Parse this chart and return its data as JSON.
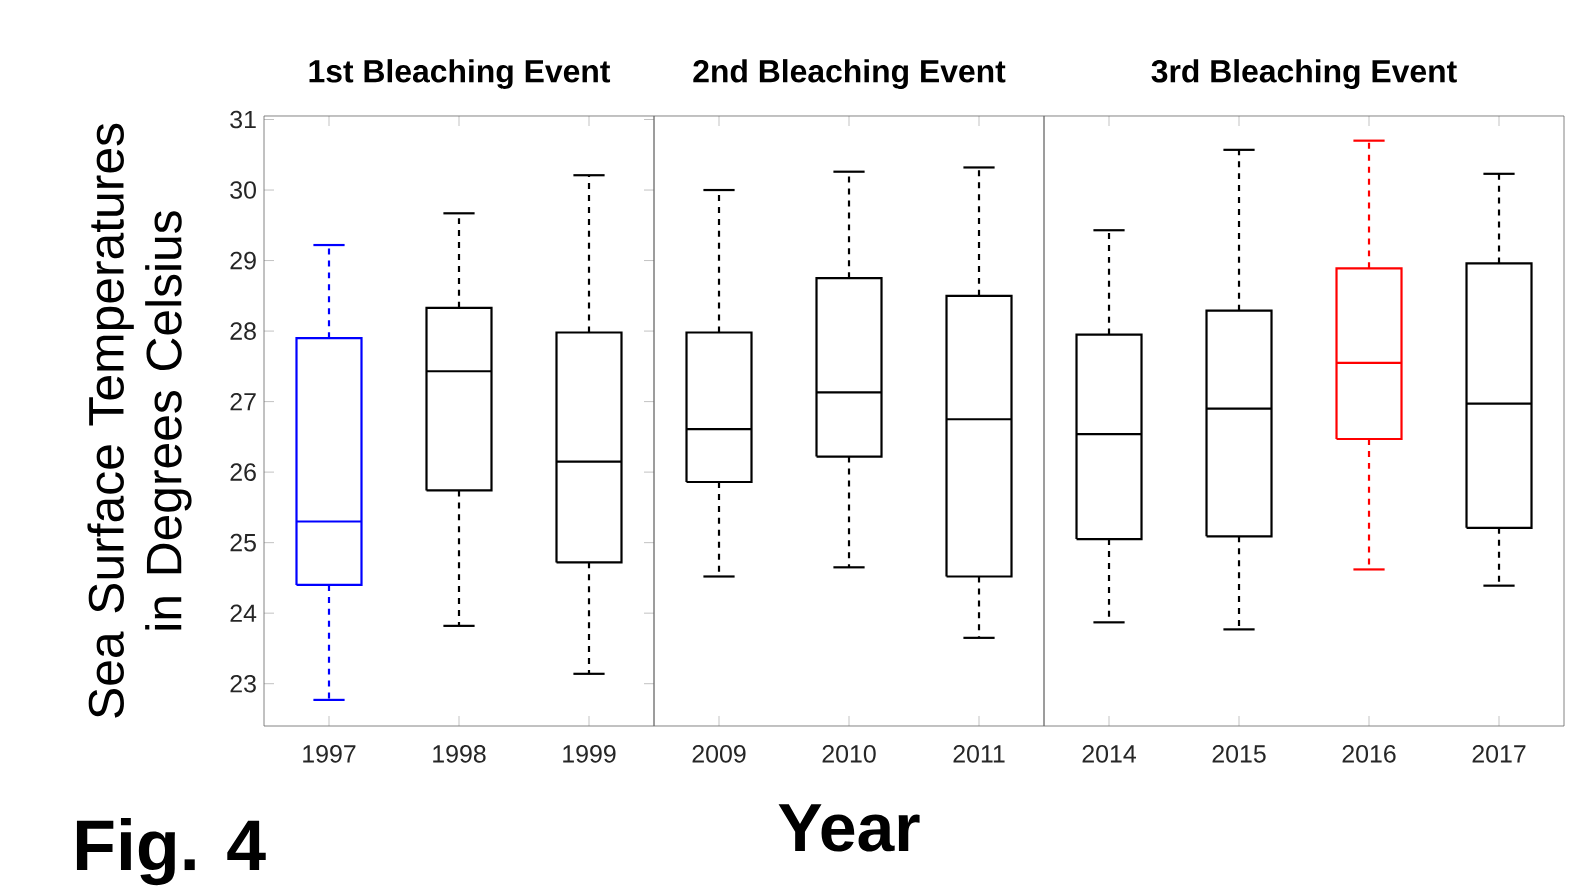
{
  "chart_data": [
    {
      "type": "box",
      "title": "1st Bleaching Event",
      "ylabel": "Sea Surface Temperatures in Degrees Celsius",
      "annotations": [
        "Fig. 4"
      ],
      "categories": [
        "1997",
        "1998",
        "1999"
      ],
      "boxes": [
        {
          "low": 22.77,
          "q1": 24.4,
          "median": 25.3,
          "q3": 27.9,
          "high": 29.22
        },
        {
          "low": 23.82,
          "q1": 25.74,
          "median": 27.43,
          "q3": 28.33,
          "high": 29.67
        },
        {
          "low": 23.14,
          "q1": 24.72,
          "median": 26.15,
          "q3": 27.98,
          "high": 30.21
        }
      ],
      "colors": [
        "#0000ff",
        "#000000",
        "#000000"
      ],
      "ylim": [
        22.4,
        31.05
      ],
      "yticks": [
        23,
        24,
        25,
        26,
        27,
        28,
        29,
        30,
        31
      ]
    },
    {
      "type": "box",
      "title": "2nd Bleaching Event",
      "xlabel": "Year",
      "categories": [
        "2009",
        "2010",
        "2011"
      ],
      "boxes": [
        {
          "low": 24.52,
          "q1": 25.86,
          "median": 26.61,
          "q3": 27.98,
          "high": 30.0
        },
        {
          "low": 24.65,
          "q1": 26.22,
          "median": 27.13,
          "q3": 28.75,
          "high": 30.26
        },
        {
          "low": 23.65,
          "q1": 24.52,
          "median": 26.75,
          "q3": 28.5,
          "high": 30.32
        }
      ],
      "colors": [
        "#000000",
        "#000000",
        "#000000"
      ],
      "ylim": [
        22.4,
        31.05
      ],
      "tick_labels": "x"
    },
    {
      "type": "box",
      "title": "3rd Bleaching Event",
      "categories": [
        "2014",
        "2015",
        "2016",
        "2017"
      ],
      "boxes": [
        {
          "low": 23.87,
          "q1": 25.05,
          "median": 26.54,
          "q3": 27.95,
          "high": 29.43
        },
        {
          "low": 23.77,
          "q1": 25.09,
          "median": 26.9,
          "q3": 28.29,
          "high": 30.57
        },
        {
          "low": 24.62,
          "q1": 26.47,
          "median": 27.55,
          "q3": 28.89,
          "high": 30.7
        },
        {
          "low": 24.39,
          "q1": 25.21,
          "median": 26.97,
          "q3": 28.96,
          "high": 30.23
        }
      ],
      "colors": [
        "#000000",
        "#000000",
        "#ff0000",
        "#000000"
      ],
      "ylim": [
        22.4,
        31.05
      ],
      "tick_labels": "x"
    }
  ]
}
